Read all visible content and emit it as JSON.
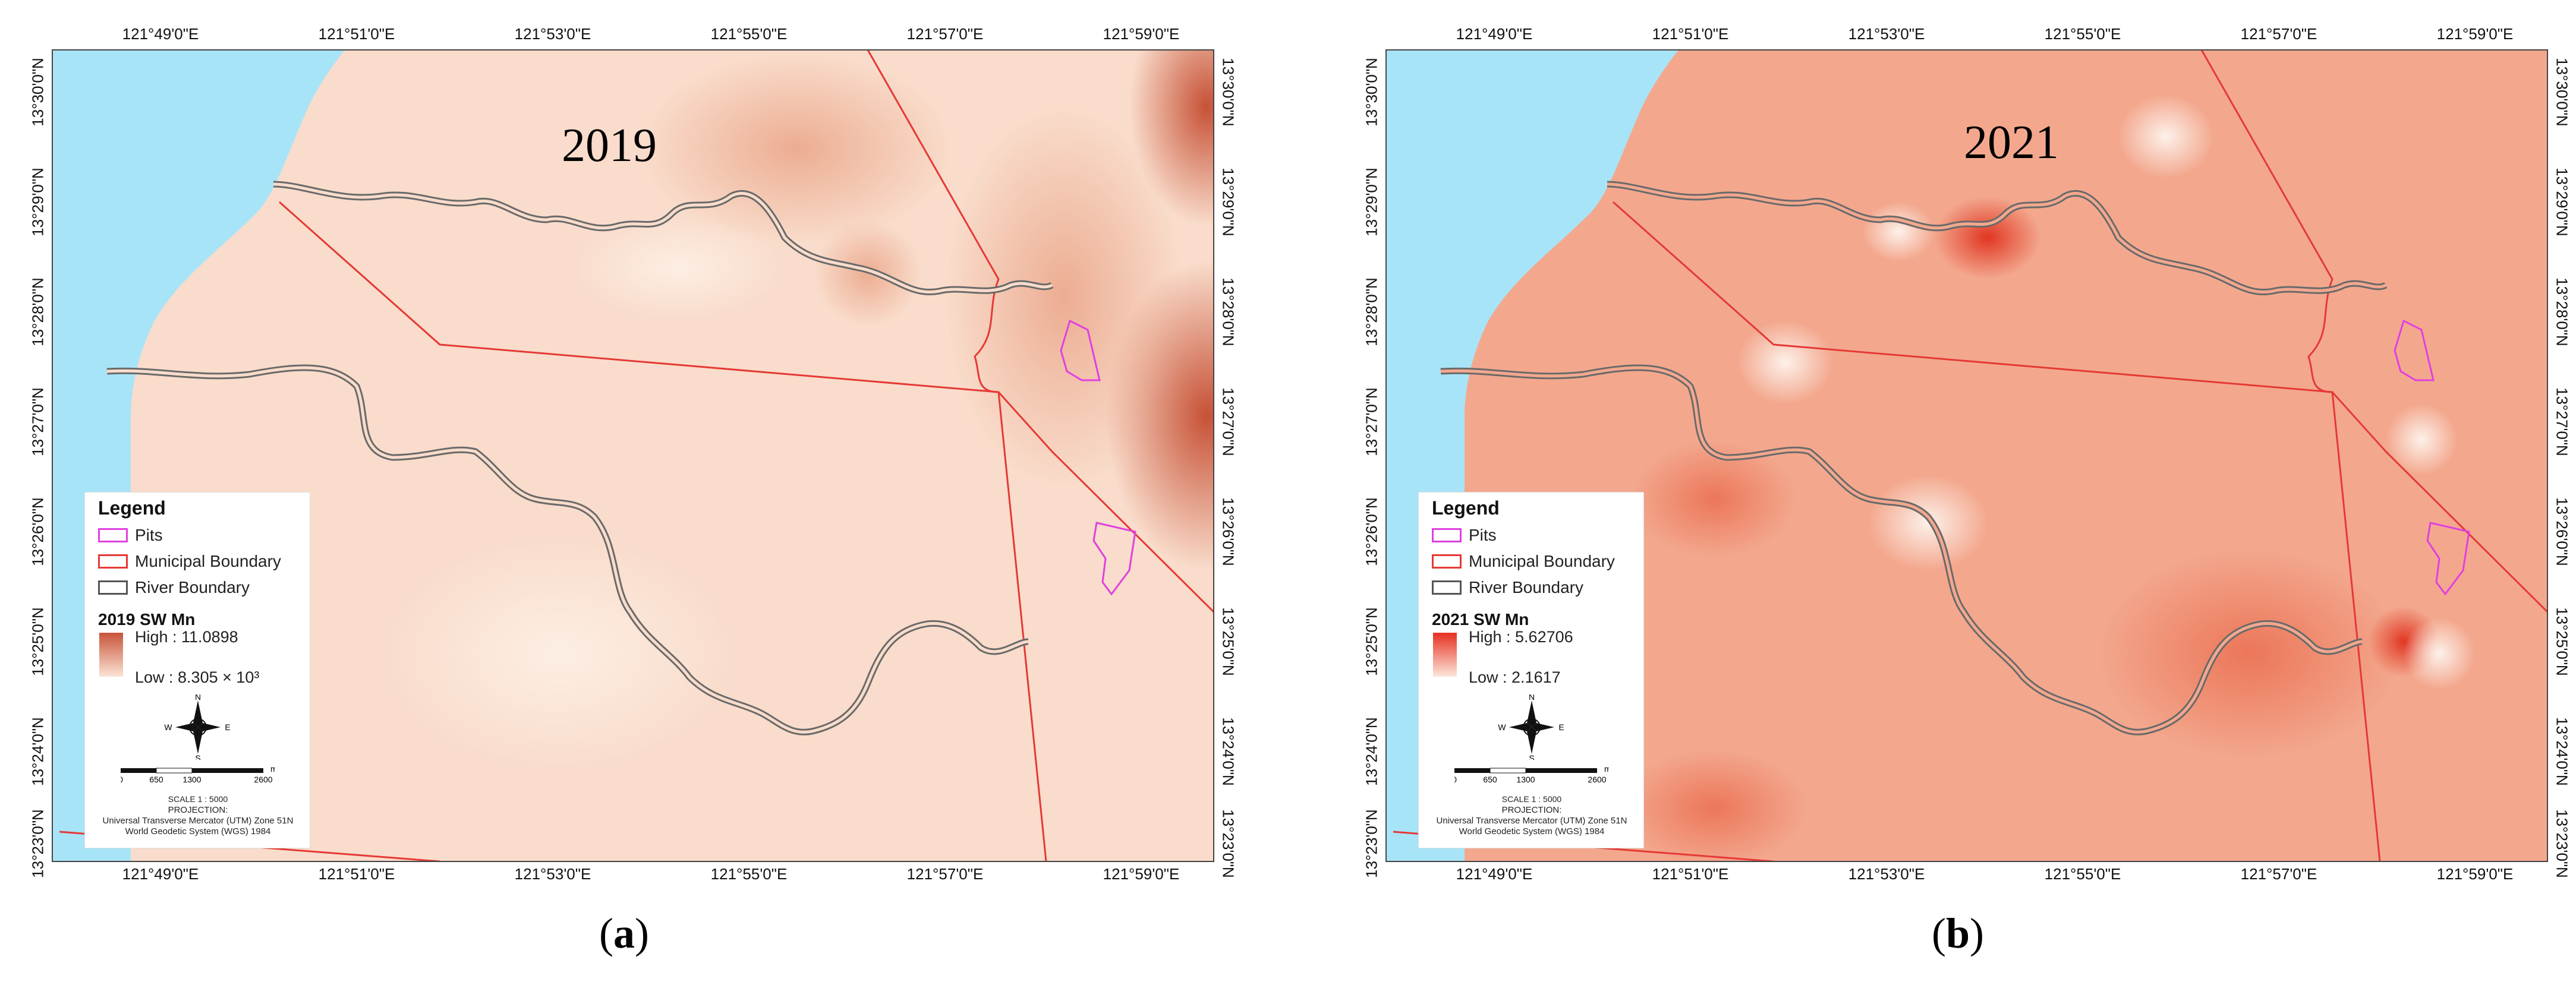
{
  "figure": {
    "panels": [
      {
        "id": "a",
        "year_label": "2019",
        "caption": "a",
        "legend": {
          "title": "Legend",
          "items": [
            {
              "label": "Pits",
              "color": "#e040e0"
            },
            {
              "label": "Municipal Boundary",
              "color": "#e53935"
            },
            {
              "label": "River Boundary",
              "color": "#555555"
            }
          ],
          "ramp_title": "2019 SW Mn",
          "high_text": "High : 11.0898",
          "low_text": "Low : 8.305 × 10³",
          "ramp_high_color": "#c8533a",
          "ramp_low_color": "#fbe4d4",
          "compass": {
            "n": "N",
            "s": "S",
            "e": "E",
            "w": "W"
          },
          "scale_ticks": [
            "0",
            "650",
            "1300",
            "2600"
          ],
          "scale_unit": "m",
          "scale_text": "SCALE 1 : 5000",
          "projection_lines": [
            "PROJECTION:",
            "Universal Transverse Mercator (UTM) Zone 51N",
            "World Geodetic System (WGS) 1984"
          ]
        }
      },
      {
        "id": "b",
        "year_label": "2021",
        "caption": "b",
        "legend": {
          "title": "Legend",
          "items": [
            {
              "label": "Pits",
              "color": "#e040e0"
            },
            {
              "label": "Municipal Boundary",
              "color": "#e53935"
            },
            {
              "label": "River Boundary",
              "color": "#555555"
            }
          ],
          "ramp_title": "2021 SW Mn",
          "high_text": "High : 5.62706",
          "low_text": "Low : 2.1617",
          "ramp_high_color": "#e53020",
          "ramp_low_color": "#fde6dc",
          "compass": {
            "n": "N",
            "s": "S",
            "e": "E",
            "w": "W"
          },
          "scale_ticks": [
            "0",
            "650",
            "1300",
            "2600"
          ],
          "scale_unit": "m",
          "scale_text": "SCALE 1 : 5000",
          "projection_lines": [
            "PROJECTION:",
            "Universal Transverse Mercator (UTM) Zone 51N",
            "World Geodetic System (WGS) 1984"
          ]
        }
      }
    ],
    "lon_ticks": [
      "121°49'0\"E",
      "121°51'0\"E",
      "121°53'0\"E",
      "121°55'0\"E",
      "121°57'0\"E",
      "121°59'0\"E"
    ],
    "lat_ticks": [
      "13°30'0\"N",
      "13°29'0\"N",
      "13°28'0\"N",
      "13°27'0\"N",
      "13°26'0\"N",
      "13°25'0\"N",
      "13°24'0\"N",
      "13°23'0\"N"
    ],
    "colors": {
      "water": "#a8e4f8",
      "boundary": "#e53935",
      "river": "#6a6a6a",
      "pits": "#e040e0",
      "base_2019": "#f9dccb",
      "base_2021": "#f3a88e"
    }
  }
}
